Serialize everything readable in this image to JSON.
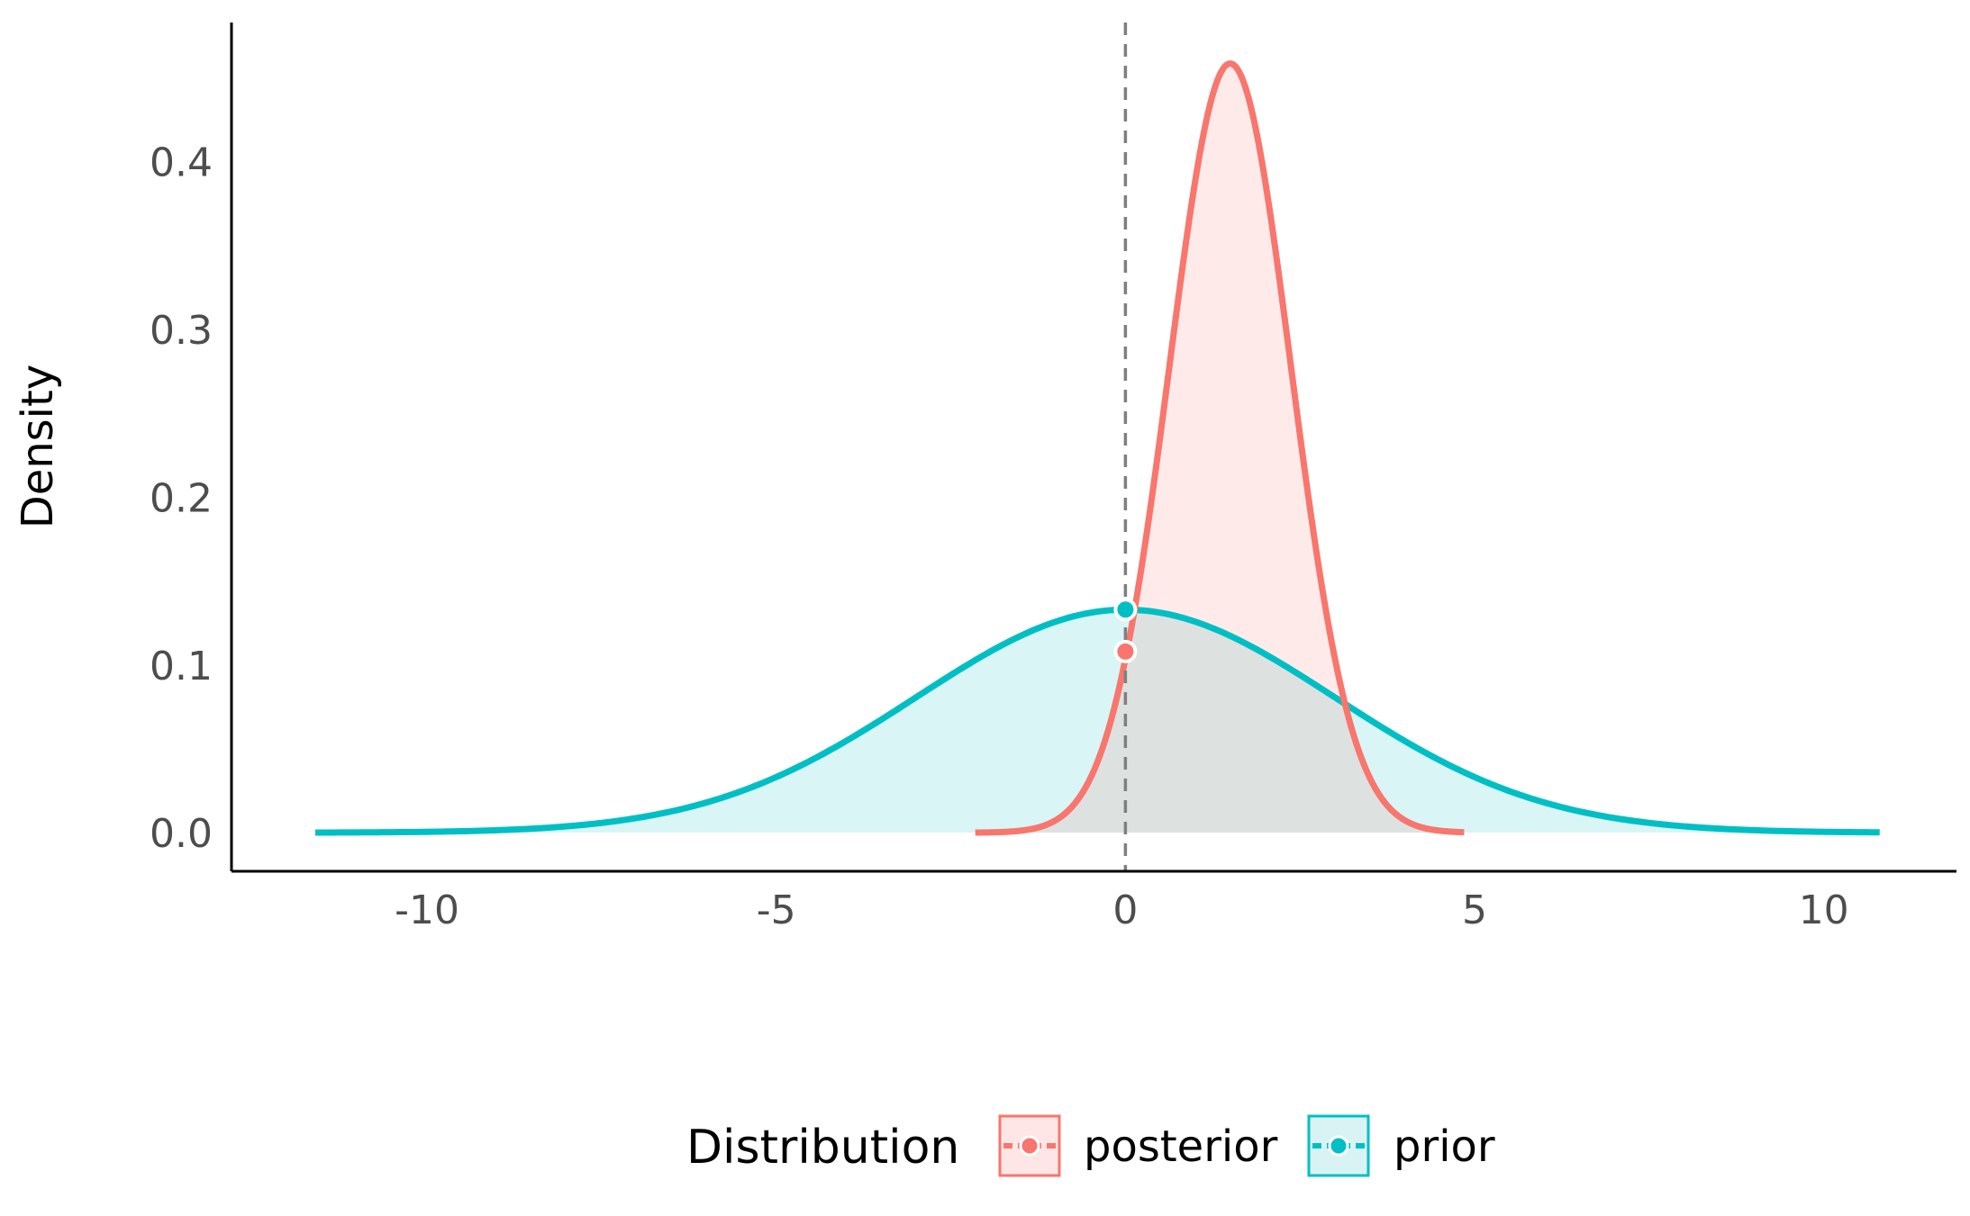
{
  "chart_data": {
    "type": "area",
    "title": "",
    "xlabel": "",
    "ylabel": "Density",
    "xlim": [
      -12.8,
      11.9
    ],
    "ylim": [
      -0.023,
      0.483
    ],
    "x_ticks": [
      -10,
      -5,
      0,
      5,
      10
    ],
    "x_tick_labels": [
      "-10",
      "-5",
      "0",
      "5",
      "10"
    ],
    "y_ticks": [
      0.0,
      0.1,
      0.2,
      0.3,
      0.4
    ],
    "y_tick_labels": [
      "0.0",
      "0.1",
      "0.2",
      "0.3",
      "0.4"
    ],
    "grid": false,
    "reference_line": {
      "x": 0,
      "style": "dashed",
      "color": "#7f7f7f"
    },
    "series": [
      {
        "name": "posterior",
        "color": "#F8766D",
        "fill": "#FDE6E5",
        "distribution": "normal",
        "mean": 1.5,
        "sd": 0.87,
        "x_range": [
          -2.15,
          4.85
        ],
        "peak_density": 0.46,
        "density_at_zero": 0.108
      },
      {
        "name": "prior",
        "color": "#00BFC4",
        "fill": "#D9F3F4",
        "distribution": "normal",
        "mean": 0,
        "sd": 3,
        "x_range": [
          -11.6,
          10.8
        ],
        "peak_density": 0.133,
        "density_at_zero": 0.133
      }
    ],
    "points_at_reference": [
      {
        "series": "prior",
        "x": 0,
        "y": 0.133
      },
      {
        "series": "posterior",
        "x": 0,
        "y": 0.108
      }
    ],
    "legend": {
      "title": "Distribution",
      "position": "bottom",
      "entries": [
        "posterior",
        "prior"
      ]
    }
  }
}
